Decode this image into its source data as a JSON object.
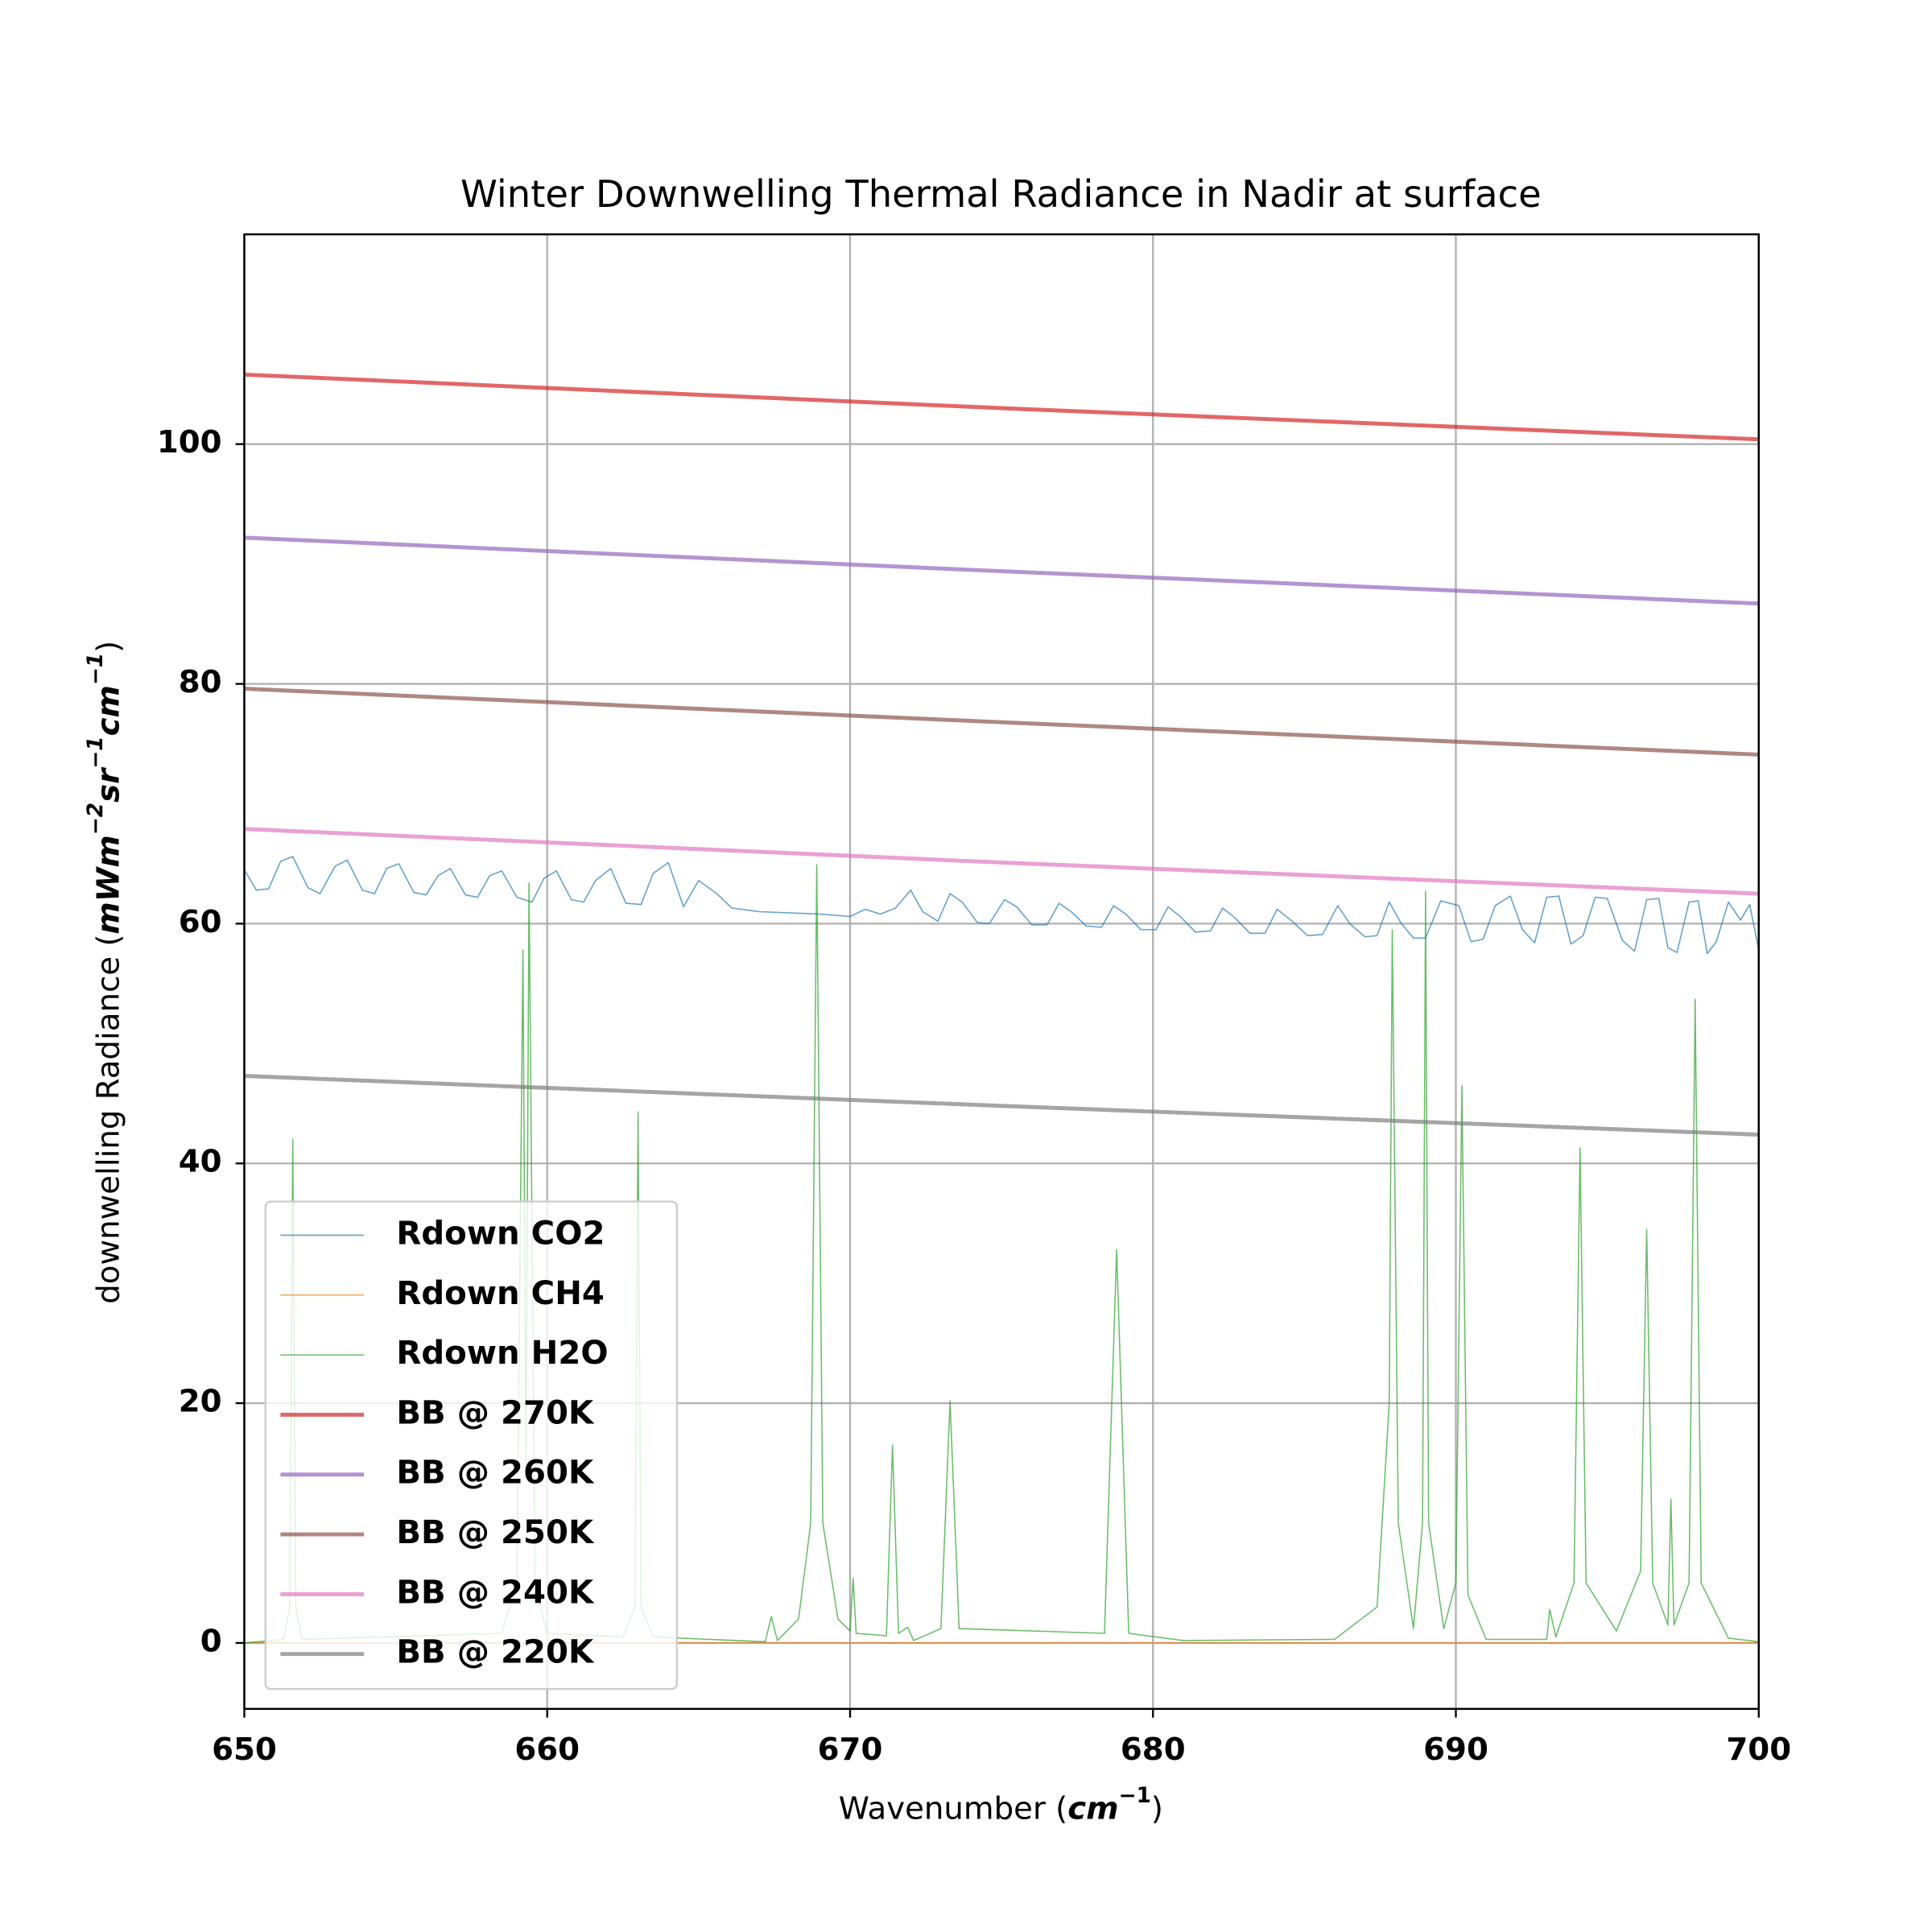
{
  "chart_data": {
    "type": "line",
    "title": "Winter Downwelling Thermal Radiance in Nadir at surface",
    "xlabel": [
      "Wavenumber (",
      "cm",
      "−1",
      ")"
    ],
    "ylabel": [
      "downwelling Radiance (",
      "mWm",
      "−2",
      "sr",
      "−1",
      "cm",
      "−1",
      ")"
    ],
    "xlim": [
      650,
      700
    ],
    "xticks": [
      650,
      660,
      670,
      680,
      690,
      700
    ],
    "ylim": [
      -5.5,
      117.5
    ],
    "yticks": [
      0,
      20,
      40,
      60,
      80,
      100
    ],
    "grid": true,
    "legend": "lower left",
    "series": [
      {
        "name": "Rdown CO2",
        "color": "#1f77b4",
        "width": "thin",
        "x": [
          650,
          650.4,
          650.8,
          651.2,
          651.6,
          652.1,
          652.5,
          653,
          653.4,
          653.9,
          654.3,
          654.7,
          655.1,
          655.6,
          656,
          656.4,
          656.8,
          657.3,
          657.7,
          658.1,
          658.5,
          659,
          659.5,
          659.9,
          660.3,
          660.8,
          661.2,
          661.6,
          662.1,
          662.6,
          663.1,
          663.5,
          664,
          664.5,
          665,
          665.6,
          666.1,
          667,
          668,
          669,
          670,
          670.5,
          671,
          671.5,
          672,
          672.4,
          672.9,
          673.3,
          673.7,
          674.2,
          674.6,
          675.1,
          675.5,
          676,
          676.5,
          676.9,
          677.3,
          677.8,
          678.3,
          678.7,
          679.1,
          679.6,
          680.1,
          680.5,
          680.9,
          681.4,
          681.9,
          682.3,
          682.7,
          683.2,
          683.7,
          684.1,
          684.6,
          685.1,
          685.6,
          686.1,
          686.5,
          687,
          687.4,
          687.8,
          688.2,
          688.6,
          689,
          689.5,
          690.1,
          690.5,
          690.9,
          691.3,
          691.8,
          692.2,
          692.6,
          693,
          693.4,
          693.8,
          694.2,
          694.6,
          695,
          695.5,
          695.9,
          696.3,
          696.7,
          697,
          697.3,
          697.7,
          698,
          698.3,
          698.6,
          699,
          699.4,
          699.7,
          700
        ],
        "values": [
          64.5,
          62.8,
          62.9,
          65.2,
          65.6,
          63.0,
          62.5,
          64.8,
          65.3,
          62.8,
          62.5,
          64.6,
          65.0,
          62.6,
          62.4,
          64.0,
          64.6,
          62.4,
          62.2,
          64.0,
          64.4,
          62.2,
          61.8,
          63.8,
          64.4,
          62.0,
          61.8,
          63.6,
          64.6,
          61.7,
          61.6,
          64.2,
          65.1,
          61.4,
          63.6,
          62.5,
          61.3,
          61.0,
          60.9,
          60.8,
          60.6,
          61.2,
          60.8,
          61.3,
          62.8,
          61.0,
          60.2,
          62.5,
          61.8,
          60.1,
          60.0,
          62.0,
          61.4,
          59.9,
          59.9,
          61.7,
          61.0,
          59.8,
          59.7,
          61.5,
          60.8,
          59.5,
          59.5,
          61.4,
          60.6,
          59.3,
          59.4,
          61.3,
          60.5,
          59.2,
          59.2,
          61.2,
          60.2,
          59.0,
          59.1,
          61.5,
          60.0,
          58.9,
          59.0,
          61.8,
          60.0,
          58.8,
          58.8,
          61.9,
          61.5,
          58.5,
          58.7,
          61.5,
          62.3,
          59.5,
          58.4,
          62.2,
          62.3,
          58.3,
          59.0,
          62.2,
          62.1,
          58.6,
          57.7,
          62.0,
          62.1,
          58.0,
          57.6,
          61.8,
          61.9,
          57.5,
          58.5,
          61.8,
          60.3,
          61.6,
          57.8
        ]
      },
      {
        "name": "Rdown CH4",
        "color": "#ff7f0e",
        "width": "thin",
        "x": [
          650,
          700
        ],
        "values": [
          0,
          0
        ]
      },
      {
        "name": "Rdown H2O",
        "color": "#2ca02c",
        "width": "thin",
        "x": [
          650,
          651.3,
          651.5,
          651.6,
          651.7,
          651.9,
          658.5,
          659,
          659.2,
          659.3,
          659.4,
          659.6,
          660,
          662.5,
          662.9,
          663,
          663.1,
          663.5,
          667.2,
          667.4,
          667.6,
          668.3,
          668.7,
          668.9,
          669.1,
          669.6,
          670,
          670.1,
          670.2,
          671.2,
          671.4,
          671.6,
          671.9,
          672.1,
          673,
          673.3,
          673.6,
          678.4,
          678.8,
          679.2,
          681,
          686,
          687.4,
          687.8,
          687.9,
          688.1,
          688.6,
          688.9,
          689,
          689.1,
          689.6,
          690,
          690.2,
          690.4,
          691,
          693,
          693.1,
          693.3,
          693.9,
          694.1,
          694.3,
          695.3,
          696.1,
          696.3,
          696.5,
          697,
          697.1,
          697.2,
          697.7,
          697.9,
          698.1,
          699,
          700
        ],
        "values": [
          0,
          0.3,
          3,
          42,
          3,
          0.3,
          0.8,
          5,
          57.8,
          15,
          63.4,
          5,
          0.8,
          0.5,
          3,
          44.3,
          3,
          0.5,
          0.1,
          2.2,
          0.2,
          2,
          10,
          64.9,
          10,
          2,
          1.0,
          5.4,
          0.8,
          0.6,
          16.5,
          0.8,
          1.3,
          0.2,
          1.2,
          20.2,
          1.2,
          0.8,
          32.8,
          0.8,
          0.2,
          0.3,
          3,
          20,
          59.5,
          10,
          1.2,
          10,
          62.7,
          10,
          1.2,
          5,
          46.5,
          4,
          0.3,
          0.3,
          2.8,
          0.5,
          5,
          41.3,
          5,
          1,
          6,
          34.5,
          5,
          1.5,
          12,
          1.5,
          5,
          53.7,
          5,
          0.4,
          0.1
        ]
      },
      {
        "name": "BB @ 270K",
        "color": "#d62728",
        "width": "thick",
        "x": [
          650,
          675,
          700
        ],
        "values": [
          105.8,
          103.0,
          100.4
        ]
      },
      {
        "name": "BB @ 260K",
        "color": "#9467bd",
        "width": "thick",
        "x": [
          650,
          675,
          700
        ],
        "values": [
          92.2,
          89.4,
          86.7
        ]
      },
      {
        "name": "BB @ 250K",
        "color": "#8c564b",
        "width": "thick",
        "x": [
          650,
          675,
          700
        ],
        "values": [
          79.6,
          76.8,
          74.1
        ]
      },
      {
        "name": "BB @ 240K",
        "color": "#e377c2",
        "width": "thick",
        "x": [
          650,
          675,
          700
        ],
        "values": [
          67.9,
          65.1,
          62.5
        ]
      },
      {
        "name": "BB @ 220K",
        "color": "#7f7f7f",
        "width": "thick",
        "x": [
          650,
          675,
          700
        ],
        "values": [
          47.3,
          44.8,
          42.4
        ]
      }
    ]
  }
}
